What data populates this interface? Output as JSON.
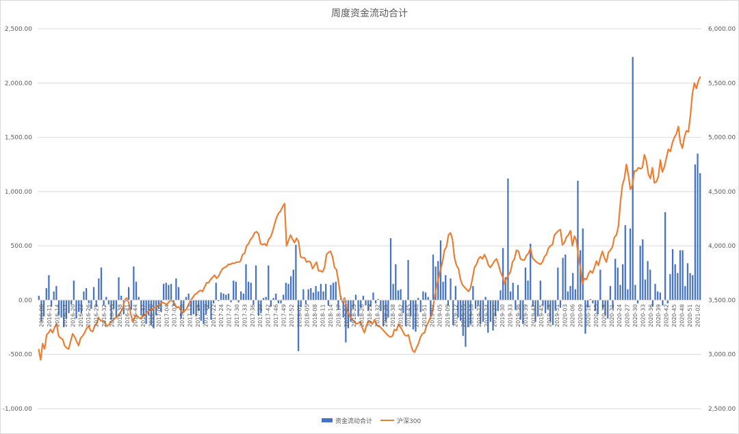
{
  "chart_data": {
    "type": "bar",
    "title": "周度资金流动合计",
    "y_left": {
      "ylim": [
        -1000,
        2500
      ],
      "ticks": [
        "-1,000.00",
        "-500.00",
        "0.00",
        "500.00",
        "1,000.00",
        "1,500.00",
        "2,000.00",
        "2,500.00"
      ]
    },
    "y_right": {
      "ylim": [
        2500,
        6000
      ],
      "ticks": [
        "2,500.00",
        "3,000.00",
        "3,500.00",
        "4,000.00",
        "4,500.00",
        "5,000.00",
        "5,500.00",
        "6,000.00"
      ]
    },
    "x_tick_labels": [
      "2016-08",
      "2016-11",
      "2016-14",
      "2016-17",
      "2016-20",
      "2016-23",
      "2016-26",
      "2016-29",
      "2016-32",
      "2016-35",
      "2016-38",
      "2016-41",
      "2016-44",
      "2016-47",
      "2016-50",
      "2017-01",
      "2017-04",
      "2017-07",
      "2017-10",
      "2017-13",
      "2017-16",
      "2017-19",
      "2017-22",
      "2017-24",
      "2017-27",
      "2017-30",
      "2017-33",
      "2017-36",
      "2017-39",
      "2017-42",
      "2017-46",
      "2017-49",
      "2017-52",
      "2018-02",
      "2018-05",
      "2018-08",
      "2018-11",
      "2018-14",
      "2018-17",
      "2018-20",
      "2018-23",
      "2018-26",
      "2018-29",
      "2018-32",
      "2018-35",
      "2018-38",
      "2018-42",
      "2018-45",
      "2018-48",
      "2018-51",
      "2019-02",
      "2019-05",
      "2019-09",
      "2019-12",
      "2019-15",
      "2019-18",
      "2019-21",
      "2019-24",
      "2019-27",
      "2019-30",
      "2019-33",
      "2019-36",
      "2019-39",
      "2019-42",
      "2019-45",
      "2019-48",
      "2019-51",
      "2020-03",
      "2020-06",
      "2020-09",
      "2020-12",
      "2020-15",
      "2020-18",
      "2020-21",
      "2020-24",
      "2020-27",
      "2020-30",
      "2020-33",
      "2020-36",
      "2020-39",
      "2020-42",
      "2020-45",
      "2020-48",
      "2020-51",
      "2021-02"
    ],
    "series": [
      {
        "name": "资金流动合计",
        "type": "bar",
        "axis": "left",
        "color": "#4472c4",
        "values": [
          40,
          -200,
          -150,
          110,
          230,
          -60,
          80,
          130,
          -140,
          -160,
          -250,
          -170,
          -120,
          -40,
          180,
          -170,
          -110,
          -120,
          80,
          110,
          -30,
          -80,
          120,
          -60,
          200,
          300,
          -50,
          30,
          -40,
          -180,
          -80,
          -160,
          210,
          40,
          -130,
          -10,
          120,
          -90,
          310,
          170,
          30,
          -140,
          -150,
          -220,
          -140,
          -230,
          -260,
          -140,
          -80,
          -110,
          150,
          160,
          140,
          150,
          -50,
          200,
          120,
          -170,
          -110,
          30,
          60,
          -140,
          -130,
          -150,
          -100,
          -190,
          -220,
          -130,
          -80,
          -180,
          -30,
          160,
          -10,
          70,
          60,
          50,
          60,
          -20,
          180,
          170,
          -20,
          80,
          60,
          330,
          170,
          160,
          -40,
          320,
          -140,
          -120,
          20,
          30,
          320,
          -60,
          20,
          60,
          -30,
          -30,
          50,
          160,
          150,
          220,
          280,
          510,
          -470,
          -60,
          100,
          -40,
          100,
          110,
          70,
          130,
          80,
          150,
          80,
          150,
          -50,
          140,
          160,
          170,
          -90,
          40,
          -160,
          -390,
          -260,
          -200,
          -80,
          50,
          -150,
          -70,
          40,
          -50,
          -100,
          -60,
          70,
          -30,
          10,
          -100,
          -240,
          -200,
          -160,
          570,
          150,
          330,
          90,
          100,
          -120,
          -240,
          370,
          -150,
          -270,
          -290,
          20,
          -110,
          80,
          70,
          30,
          -150,
          420,
          310,
          360,
          550,
          170,
          230,
          -50,
          200,
          -230,
          130,
          -160,
          -190,
          -330,
          -430,
          -250,
          -220,
          130,
          -80,
          -50,
          -220,
          -200,
          30,
          -300,
          -200,
          -280,
          -150,
          -100,
          90,
          480,
          210,
          1120,
          80,
          160,
          -90,
          140,
          -180,
          -220,
          300,
          180,
          520,
          -60,
          -200,
          -150,
          180,
          -50,
          -120,
          -80,
          -200,
          -230,
          -90,
          300,
          -70,
          390,
          420,
          80,
          130,
          250,
          100,
          1100,
          460,
          660,
          -310,
          -70,
          10,
          -30,
          -100,
          -130,
          280,
          -80,
          -140,
          -170,
          130,
          -80,
          380,
          300,
          140,
          330,
          690,
          100,
          660,
          2240,
          140,
          -30,
          500,
          560,
          190,
          360,
          280,
          -60,
          150,
          80,
          70,
          -50,
          810,
          -30,
          240,
          470,
          330,
          250,
          460,
          460,
          130,
          340,
          250,
          230,
          1250,
          1350,
          1170
        ]
      },
      {
        "name": "沪深300",
        "type": "line",
        "axis": "right",
        "color": "#ed7d31",
        "values": [
          3050,
          2950,
          3100,
          3050,
          3180,
          3200,
          3230,
          3200,
          3250,
          3280,
          3170,
          3150,
          3140,
          3080,
          3060,
          3050,
          3120,
          3190,
          3160,
          3120,
          3080,
          3150,
          3170,
          3200,
          3240,
          3260,
          3220,
          3210,
          3260,
          3280,
          3340,
          3310,
          3310,
          3300,
          3260,
          3270,
          3300,
          3310,
          3330,
          3340,
          3360,
          3390,
          3420,
          3500,
          3520,
          3480,
          3380,
          3300,
          3340,
          3360,
          3340,
          3330,
          3350,
          3360,
          3380,
          3400,
          3420,
          3410,
          3430,
          3440,
          3450,
          3470,
          3480,
          3470,
          3460,
          3480,
          3500,
          3490,
          3470,
          3430,
          3440,
          3410,
          3380,
          3400,
          3420,
          3460,
          3500,
          3520,
          3550,
          3560,
          3580,
          3590,
          3580,
          3620,
          3660,
          3660,
          3690,
          3710,
          3730,
          3700,
          3720,
          3760,
          3790,
          3800,
          3810,
          3830,
          3830,
          3840,
          3840,
          3850,
          3850,
          3860,
          3920,
          3930,
          4000,
          4020,
          4060,
          4080,
          4120,
          4130,
          4110,
          4020,
          4010,
          4020,
          4000,
          4060,
          4080,
          4130,
          4200,
          4260,
          4300,
          4320,
          4360,
          4390,
          4000,
          4050,
          4100,
          4060,
          4030,
          4070,
          4040,
          3900,
          3890,
          3890,
          3850,
          3860,
          3850,
          3790,
          3820,
          3850,
          3770,
          3770,
          3760,
          3800,
          3920,
          3940,
          3950,
          3900,
          3800,
          3780,
          3670,
          3530,
          3480,
          3520,
          3420,
          3380,
          3340,
          3320,
          3300,
          3280,
          3290,
          3300,
          3240,
          3200,
          3270,
          3310,
          3300,
          3280,
          3320,
          3270,
          3260,
          3250,
          3230,
          3210,
          3190,
          3170,
          3160,
          3170,
          3230,
          3220,
          3280,
          3250,
          3220,
          3180,
          3170,
          3180,
          3100,
          3040,
          3020,
          3060,
          3100,
          3160,
          3190,
          3200,
          3260,
          3300,
          3340,
          3400,
          3520,
          3620,
          3700,
          3780,
          3850,
          3960,
          3990,
          4100,
          4120,
          4060,
          3890,
          3820,
          3790,
          3690,
          3640,
          3620,
          3600,
          3580,
          3610,
          3700,
          3800,
          3830,
          3880,
          3900,
          3880,
          3920,
          3880,
          3820,
          3800,
          3830,
          3860,
          3880,
          3830,
          3760,
          3720,
          3650,
          3700,
          3730,
          3760,
          3850,
          3880,
          3960,
          3950,
          3880,
          3870,
          3870,
          3910,
          3930,
          3980,
          3890,
          3870,
          3850,
          3840,
          3830,
          3850,
          3900,
          3920,
          3980,
          4000,
          4010,
          4100,
          4120,
          4140,
          4150,
          4010,
          4030,
          4080,
          4100,
          4140,
          4000,
          4090,
          4050,
          3900,
          3800,
          3650,
          3700,
          3690,
          3740,
          3770,
          3750,
          3800,
          3860,
          3820,
          3890,
          3950,
          3890,
          3850,
          3940,
          3960,
          3990,
          4080,
          4100,
          4180,
          4400,
          4560,
          4620,
          4750,
          4650,
          4520,
          4560,
          4690,
          4690,
          4720,
          4710,
          4720,
          4840,
          4780,
          4660,
          4620,
          4720,
          4580,
          4590,
          4640,
          4790,
          4680,
          4730,
          4810,
          4890,
          4870,
          4950,
          5000,
          5030,
          5100,
          4950,
          4900,
          5000,
          5060,
          5050,
          5200,
          5400,
          5500,
          5450,
          5520,
          5560
        ]
      }
    ],
    "legend": {
      "placement": "bottom-center",
      "items": [
        "资金流动合计",
        "沪深300"
      ]
    },
    "grid": true
  }
}
